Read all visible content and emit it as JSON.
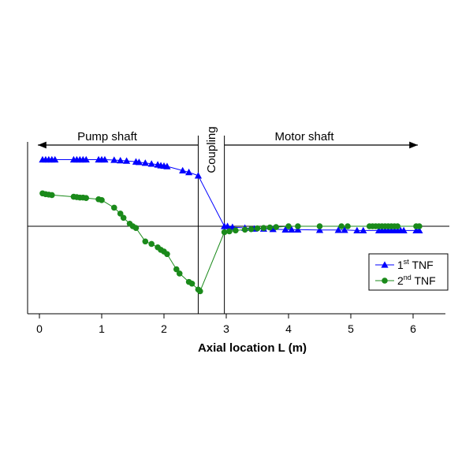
{
  "chart_data": {
    "type": "line",
    "xlabel": "Axial location L (m)",
    "xlim": [
      0,
      6.5
    ],
    "xticks": [
      0,
      1,
      2,
      3,
      4,
      5,
      6
    ],
    "ylim": [
      -1.0,
      1.0
    ],
    "grid": false,
    "legend_position": "right",
    "regions": [
      {
        "label": "Pump shaft",
        "from": 0.0,
        "to": 2.55
      },
      {
        "label": "Coupling",
        "from": 2.55,
        "to": 2.97
      },
      {
        "label": "Motor shaft",
        "from": 2.97,
        "to": 6.1
      }
    ],
    "series": [
      {
        "legend": {
          "base": "1",
          "sup": "st",
          "rest": " TNF"
        },
        "color": "#0000ff",
        "marker": "triangle",
        "x": [
          0.05,
          0.1,
          0.15,
          0.2,
          0.25,
          0.55,
          0.6,
          0.65,
          0.7,
          0.75,
          0.95,
          1.0,
          1.05,
          1.2,
          1.3,
          1.4,
          1.55,
          1.6,
          1.7,
          1.8,
          1.9,
          1.95,
          2.0,
          2.05,
          2.3,
          2.4,
          2.55,
          2.97,
          3.02,
          3.1,
          3.3,
          3.45,
          3.6,
          3.75,
          3.95,
          4.05,
          4.15,
          4.5,
          4.8,
          4.9,
          5.1,
          5.2,
          5.45,
          5.5,
          5.55,
          5.6,
          5.65,
          5.7,
          5.75,
          5.8,
          5.85,
          6.05,
          6.1
        ],
        "y": [
          0.79,
          0.79,
          0.79,
          0.79,
          0.79,
          0.79,
          0.79,
          0.79,
          0.79,
          0.79,
          0.79,
          0.79,
          0.79,
          0.785,
          0.78,
          0.775,
          0.765,
          0.76,
          0.75,
          0.74,
          0.73,
          0.72,
          0.715,
          0.71,
          0.66,
          0.64,
          0.6,
          0.0,
          0.0,
          -0.01,
          -0.02,
          -0.03,
          -0.03,
          -0.035,
          -0.04,
          -0.04,
          -0.04,
          -0.045,
          -0.045,
          -0.045,
          -0.05,
          -0.05,
          -0.05,
          -0.05,
          -0.05,
          -0.05,
          -0.05,
          -0.05,
          -0.05,
          -0.05,
          -0.05,
          -0.05,
          -0.05
        ]
      },
      {
        "legend": {
          "base": "2",
          "sup": "nd",
          "rest": " TNF"
        },
        "color": "#1a8a1a",
        "marker": "circle",
        "x": [
          0.05,
          0.1,
          0.15,
          0.2,
          0.55,
          0.6,
          0.65,
          0.7,
          0.75,
          0.95,
          1.0,
          1.2,
          1.3,
          1.35,
          1.45,
          1.5,
          1.55,
          1.7,
          1.8,
          1.9,
          1.95,
          2.0,
          2.05,
          2.2,
          2.25,
          2.4,
          2.45,
          2.55,
          2.58,
          2.97,
          3.05,
          3.15,
          3.3,
          3.4,
          3.5,
          3.6,
          3.7,
          3.8,
          4.0,
          4.15,
          4.5,
          4.85,
          4.95,
          5.3,
          5.35,
          5.4,
          5.45,
          5.5,
          5.55,
          5.6,
          5.65,
          5.7,
          5.75,
          6.05,
          6.1
        ],
        "y": [
          0.39,
          0.38,
          0.375,
          0.37,
          0.35,
          0.345,
          0.34,
          0.34,
          0.335,
          0.32,
          0.31,
          0.22,
          0.15,
          0.1,
          0.03,
          0.0,
          -0.02,
          -0.18,
          -0.21,
          -0.25,
          -0.28,
          -0.3,
          -0.33,
          -0.51,
          -0.56,
          -0.66,
          -0.68,
          -0.75,
          -0.77,
          -0.07,
          -0.06,
          -0.05,
          -0.04,
          -0.035,
          -0.025,
          -0.02,
          -0.015,
          -0.01,
          0.0,
          0.0,
          0.0,
          0.0,
          0.0,
          0.0,
          0.0,
          0.0,
          0.0,
          0.0,
          0.0,
          0.0,
          0.0,
          0.0,
          0.0,
          0.0,
          0.0
        ]
      }
    ]
  }
}
